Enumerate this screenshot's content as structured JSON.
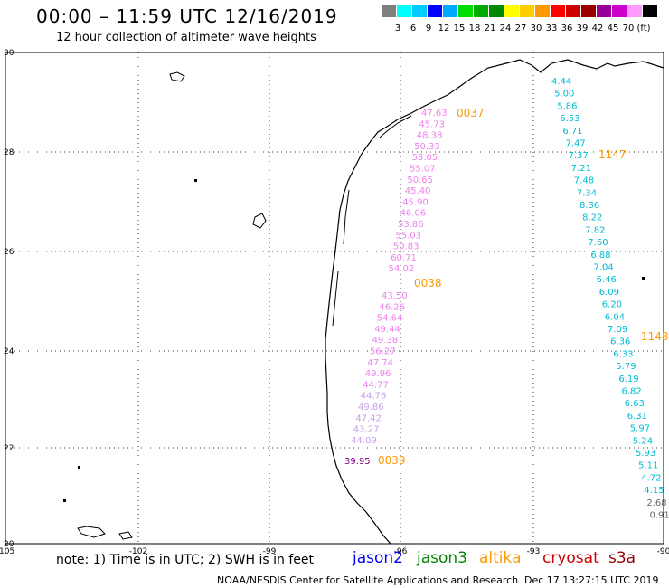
{
  "title": "00:00 – 11:59 UTC 12/16/2019",
  "subtitle": "12 hour collection of altimeter wave heights",
  "legend": {
    "colors": [
      "#7f7f7f",
      "#00ffff",
      "#00ccff",
      "#0000ff",
      "#00aaff",
      "#00dd00",
      "#00aa00",
      "#008800",
      "#ffff00",
      "#ffcc00",
      "#ff9900",
      "#ff0000",
      "#cc0000",
      "#990000",
      "#990099",
      "#cc00cc",
      "#ff99ff",
      "#000000"
    ],
    "labels": [
      "3",
      "6",
      "9",
      "12",
      "15",
      "18",
      "21",
      "24",
      "27",
      "30",
      "33",
      "36",
      "39",
      "42",
      "45",
      "70",
      "(ft)"
    ]
  },
  "axes": {
    "x_labels": [
      "-105",
      "-102",
      "-99",
      "-96",
      "-93",
      "-90"
    ],
    "y_labels": [
      "30",
      "28",
      "26",
      "24",
      "22",
      "20"
    ]
  },
  "tracks": [
    {
      "time": "0037",
      "color": "#ee82ee",
      "values": [
        "47.63",
        "45.73",
        "48.38",
        "50.33",
        "53.05",
        "55.07",
        "50.65",
        "45.40",
        "45.90",
        "46.06",
        "53.86",
        "55.03",
        "50.83",
        "60.71",
        "54.02"
      ]
    },
    {
      "time": "0038",
      "color": "#ee82ee",
      "values": [
        "43.50",
        "46.26",
        "54.64",
        "49.44",
        "49.38",
        "56.27",
        "47.74",
        "49.96",
        "44.77",
        "44.76",
        "49.86",
        "47.42",
        "43.27",
        "44.09"
      ]
    },
    {
      "time": "0039",
      "color": "#800080",
      "values": [
        "39.95"
      ]
    },
    {
      "time": "1147",
      "color": "#00bcd4",
      "values": [
        "4.44",
        "5.00",
        "5.86",
        "6.53",
        "6.71",
        "7.47",
        "7.37",
        "7.21",
        "7.48",
        "7.34",
        "8.36",
        "8.22",
        "7.82",
        "7.60",
        "6.88",
        "7.04",
        "6.46",
        "6.09",
        "6.20",
        "6.04",
        "7.09",
        "6.36",
        "6.33",
        "5.79",
        "6.19",
        "6.82",
        "6.63",
        "6.31",
        "5.97",
        "5.24",
        "5.93",
        "5.11",
        "4.72",
        "4.15",
        "2.68",
        "0.91"
      ]
    },
    {
      "time": "1148",
      "color": "#ff9900",
      "values": []
    }
  ],
  "pass_times": [
    {
      "label": "0037",
      "color": "#ff9900"
    },
    {
      "label": "0038",
      "color": "#ff9900"
    },
    {
      "label": "0039",
      "color": "#ff9900"
    },
    {
      "label": "1147",
      "color": "#ff9900"
    },
    {
      "label": "1148",
      "color": "#ff9900"
    }
  ],
  "note": "note: 1) Time is in UTC; 2) SWH is in feet",
  "satellites": [
    {
      "name": "jason2",
      "color": "#0000ff"
    },
    {
      "name": "jason3",
      "color": "#008800"
    },
    {
      "name": "altika",
      "color": "#ff9900"
    },
    {
      "name": "cryosat",
      "color": "#cc0000"
    },
    {
      "name": "s3a",
      "color": "#990000"
    }
  ],
  "credit": "NOAA/NESDIS Center for Satellite Applications and Research",
  "stamp": "Dec 17 13:27:15 UTC 2019"
}
